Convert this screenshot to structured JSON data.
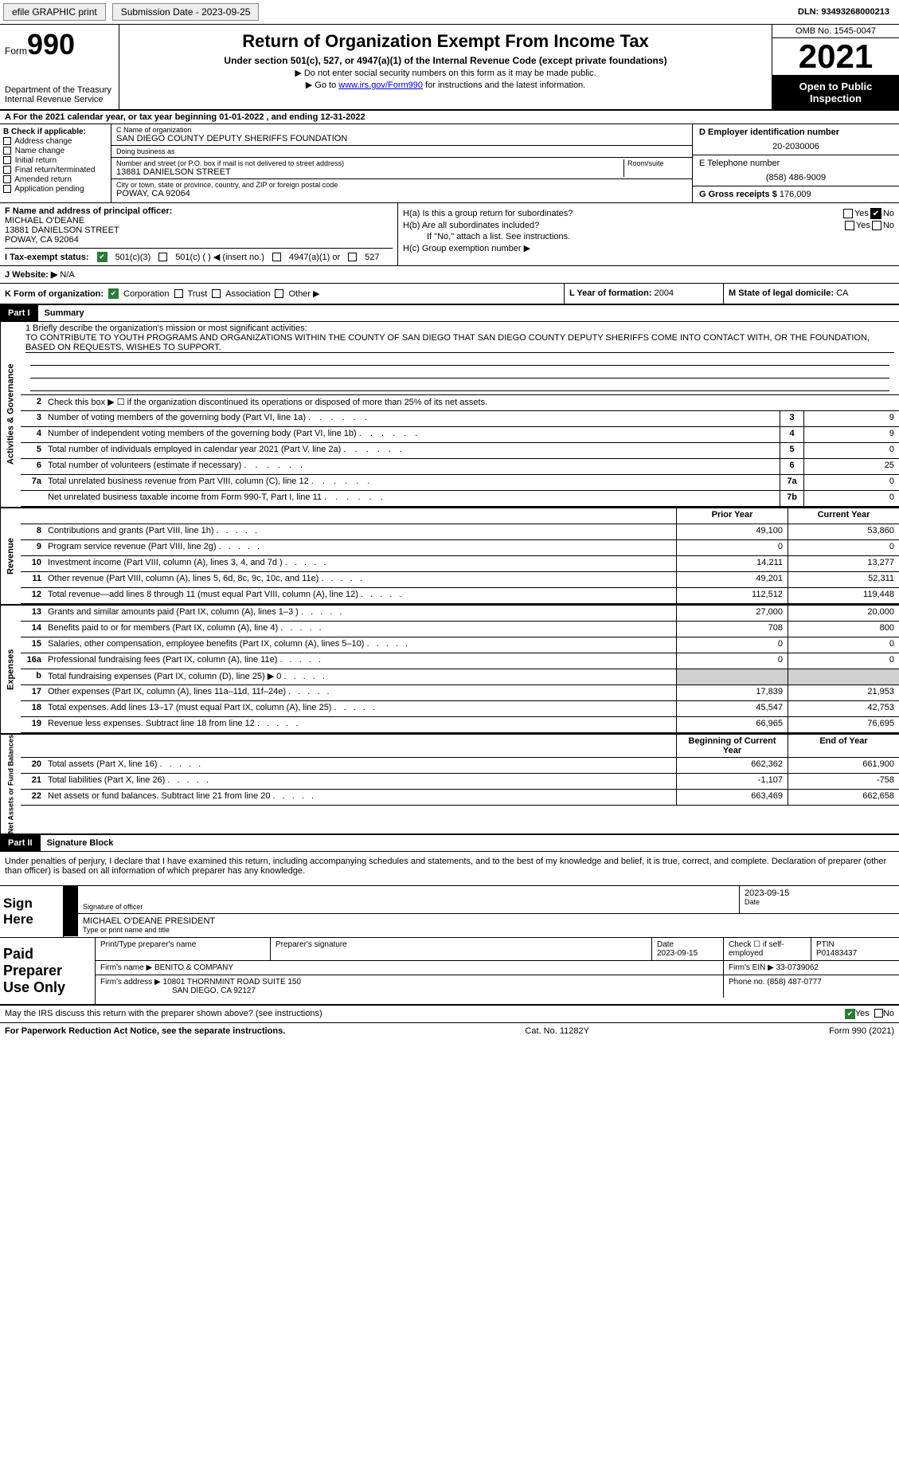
{
  "topbar": {
    "efile": "efile GRAPHIC print",
    "submission": "Submission Date - 2023-09-25",
    "dln": "DLN: 93493268000213"
  },
  "header": {
    "form_label": "Form",
    "form_number": "990",
    "dept": "Department of the Treasury",
    "irs": "Internal Revenue Service",
    "title": "Return of Organization Exempt From Income Tax",
    "subtitle": "Under section 501(c), 527, or 4947(a)(1) of the Internal Revenue Code (except private foundations)",
    "note1": "▶ Do not enter social security numbers on this form as it may be made public.",
    "note2_pre": "▶ Go to ",
    "note2_link": "www.irs.gov/Form990",
    "note2_post": " for instructions and the latest information.",
    "omb": "OMB No. 1545-0047",
    "year": "2021",
    "open": "Open to Public Inspection"
  },
  "sectionA": "A For the 2021 calendar year, or tax year beginning 01-01-2022    , and ending 12-31-2022",
  "colB": {
    "label": "B Check if applicable:",
    "items": [
      "Address change",
      "Name change",
      "Initial return",
      "Final return/terminated",
      "Amended return",
      "Application pending"
    ]
  },
  "colC": {
    "name_label": "C Name of organization",
    "name": "SAN DIEGO COUNTY DEPUTY SHERIFFS FOUNDATION",
    "dba_label": "Doing business as",
    "dba": "",
    "street_label": "Number and street (or P.O. box if mail is not delivered to street address)",
    "room_label": "Room/suite",
    "street": "13881 DANIELSON STREET",
    "city_label": "City or town, state or province, country, and ZIP or foreign postal code",
    "city": "POWAY, CA  92064"
  },
  "colD": {
    "label": "D Employer identification number",
    "val": "20-2030006"
  },
  "colE": {
    "label": "E Telephone number",
    "val": "(858) 486-9009"
  },
  "colG": {
    "label": "G Gross receipts $",
    "val": "176,009"
  },
  "colF": {
    "label": "F Name and address of principal officer:",
    "name": "MICHAEL O'DEANE",
    "street": "13881 DANIELSON STREET",
    "city": "POWAY, CA  92064"
  },
  "colH": {
    "a": "H(a)  Is this a group return for subordinates?",
    "b": "H(b)  Are all subordinates included?",
    "b_note": "If \"No,\" attach a list. See instructions.",
    "c": "H(c)  Group exemption number ▶",
    "yes": "Yes",
    "no": "No"
  },
  "rowI": {
    "label": "I    Tax-exempt status:",
    "opt1": "501(c)(3)",
    "opt2": "501(c) (   ) ◀ (insert no.)",
    "opt3": "4947(a)(1) or",
    "opt4": "527"
  },
  "rowJ": {
    "label": "J   Website: ▶",
    "val": "N/A"
  },
  "rowK": {
    "label": "K Form of organization:",
    "opts": [
      "Corporation",
      "Trust",
      "Association",
      "Other ▶"
    ]
  },
  "rowL": {
    "label": "L Year of formation:",
    "val": "2004"
  },
  "rowM": {
    "label": "M State of legal domicile:",
    "val": "CA"
  },
  "part1": {
    "tag": "Part I",
    "title": "Summary"
  },
  "mission": {
    "label": "1  Briefly describe the organization's mission or most significant activities:",
    "text": "TO CONTRIBUTE TO YOUTH PROGRAMS AND ORGANIZATIONS WITHIN THE COUNTY OF SAN DIEGO THAT SAN DIEGO COUNTY DEPUTY SHERIFFS COME INTO CONTACT WITH, OR THE FOUNDATION, BASED ON REQUESTS, WISHES TO SUPPORT."
  },
  "sides": {
    "gov": "Activities & Governance",
    "rev": "Revenue",
    "exp": "Expenses",
    "net": "Net Assets or Fund Balances"
  },
  "line2": "Check this box ▶ ☐  if the organization discontinued its operations or disposed of more than 25% of its net assets.",
  "lines_gov": [
    {
      "n": "3",
      "d": "Number of voting members of the governing body (Part VI, line 1a)",
      "b": "3",
      "v": "9"
    },
    {
      "n": "4",
      "d": "Number of independent voting members of the governing body (Part VI, line 1b)",
      "b": "4",
      "v": "9"
    },
    {
      "n": "5",
      "d": "Total number of individuals employed in calendar year 2021 (Part V, line 2a)",
      "b": "5",
      "v": "0"
    },
    {
      "n": "6",
      "d": "Total number of volunteers (estimate if necessary)",
      "b": "6",
      "v": "25"
    },
    {
      "n": "7a",
      "d": "Total unrelated business revenue from Part VIII, column (C), line 12",
      "b": "7a",
      "v": "0"
    },
    {
      "n": "",
      "d": "Net unrelated business taxable income from Form 990-T, Part I, line 11",
      "b": "7b",
      "v": "0"
    }
  ],
  "col_headers": {
    "prior": "Prior Year",
    "curr": "Current Year"
  },
  "lines_rev": [
    {
      "n": "8",
      "d": "Contributions and grants (Part VIII, line 1h)",
      "p": "49,100",
      "c": "53,860"
    },
    {
      "n": "9",
      "d": "Program service revenue (Part VIII, line 2g)",
      "p": "0",
      "c": "0"
    },
    {
      "n": "10",
      "d": "Investment income (Part VIII, column (A), lines 3, 4, and 7d )",
      "p": "14,211",
      "c": "13,277"
    },
    {
      "n": "11",
      "d": "Other revenue (Part VIII, column (A), lines 5, 6d, 8c, 9c, 10c, and 11e)",
      "p": "49,201",
      "c": "52,311"
    },
    {
      "n": "12",
      "d": "Total revenue—add lines 8 through 11 (must equal Part VIII, column (A), line 12)",
      "p": "112,512",
      "c": "119,448"
    }
  ],
  "lines_exp": [
    {
      "n": "13",
      "d": "Grants and similar amounts paid (Part IX, column (A), lines 1–3 )",
      "p": "27,000",
      "c": "20,000"
    },
    {
      "n": "14",
      "d": "Benefits paid to or for members (Part IX, column (A), line 4)",
      "p": "708",
      "c": "800"
    },
    {
      "n": "15",
      "d": "Salaries, other compensation, employee benefits (Part IX, column (A), lines 5–10)",
      "p": "0",
      "c": "0"
    },
    {
      "n": "16a",
      "d": "Professional fundraising fees (Part IX, column (A), line 11e)",
      "p": "0",
      "c": "0"
    },
    {
      "n": "b",
      "d": "Total fundraising expenses (Part IX, column (D), line 25) ▶ 0",
      "p": "",
      "c": "",
      "gray": true
    },
    {
      "n": "17",
      "d": "Other expenses (Part IX, column (A), lines 11a–11d, 11f–24e)",
      "p": "17,839",
      "c": "21,953"
    },
    {
      "n": "18",
      "d": "Total expenses. Add lines 13–17 (must equal Part IX, column (A), line 25)",
      "p": "45,547",
      "c": "42,753"
    },
    {
      "n": "19",
      "d": "Revenue less expenses. Subtract line 18 from line 12",
      "p": "66,965",
      "c": "76,695"
    }
  ],
  "col_headers2": {
    "prior": "Beginning of Current Year",
    "curr": "End of Year"
  },
  "lines_net": [
    {
      "n": "20",
      "d": "Total assets (Part X, line 16)",
      "p": "662,362",
      "c": "661,900"
    },
    {
      "n": "21",
      "d": "Total liabilities (Part X, line 26)",
      "p": "-1,107",
      "c": "-758"
    },
    {
      "n": "22",
      "d": "Net assets or fund balances. Subtract line 21 from line 20",
      "p": "663,469",
      "c": "662,658"
    }
  ],
  "part2": {
    "tag": "Part II",
    "title": "Signature Block"
  },
  "sig": {
    "declaration": "Under penalties of perjury, I declare that I have examined this return, including accompanying schedules and statements, and to the best of my knowledge and belief, it is true, correct, and complete. Declaration of preparer (other than officer) is based on all information of which preparer has any knowledge.",
    "sign_here": "Sign Here",
    "sig_label": "Signature of officer",
    "date_label": "Date",
    "date": "2023-09-15",
    "name": "MICHAEL O'DEANE PRESIDENT",
    "name_label": "Type or print name and title"
  },
  "paid": {
    "title": "Paid Preparer Use Only",
    "preparer_name_label": "Print/Type preparer's name",
    "preparer_sig_label": "Preparer's signature",
    "date_label": "Date",
    "date": "2023-09-15",
    "check_label": "Check ☐ if self-employed",
    "ptin_label": "PTIN",
    "ptin": "P01483437",
    "firm_name_label": "Firm's name    ▶",
    "firm_name": "BENITO & COMPANY",
    "firm_ein_label": "Firm's EIN ▶",
    "firm_ein": "33-0739062",
    "firm_addr_label": "Firm's address ▶",
    "firm_addr1": "10801 THORNMINT ROAD SUITE 150",
    "firm_addr2": "SAN DIEGO, CA  92127",
    "phone_label": "Phone no.",
    "phone": "(858) 487-0777"
  },
  "discuss": {
    "text": "May the IRS discuss this return with the preparer shown above? (see instructions)",
    "yes": "Yes",
    "no": "No"
  },
  "footer": {
    "left": "For Paperwork Reduction Act Notice, see the separate instructions.",
    "center": "Cat. No. 11282Y",
    "right": "Form 990 (2021)"
  }
}
